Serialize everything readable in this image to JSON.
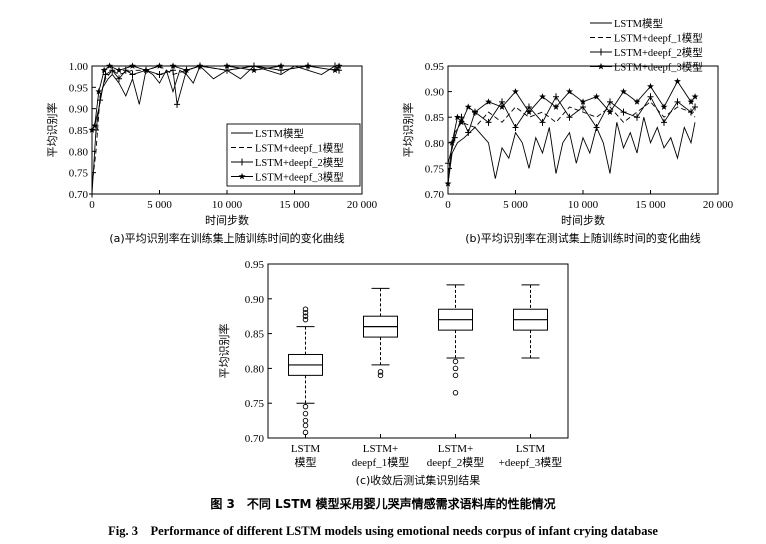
{
  "chart_data": [
    {
      "type": "line",
      "caption": "(a)平均识别率在训练集上随训练时间的变化曲线",
      "xlabel": "时间步数",
      "ylabel": "平均识别率",
      "xlim": [
        0,
        20000
      ],
      "ylim": [
        0.7,
        1.0
      ],
      "xticks": [
        "0",
        "5 000",
        "10 000",
        "15 000",
        "20 000"
      ],
      "yticks": [
        "0.70",
        "0.75",
        "0.80",
        "0.85",
        "0.90",
        "0.95",
        "1.00"
      ],
      "legend_position": "lower-right",
      "series": [
        {
          "name": "LSTM模型",
          "x": [
            0,
            200,
            500,
            800,
            1200,
            1500,
            2000,
            2500,
            3000,
            3500,
            4000,
            4500,
            5000,
            5500,
            6000,
            6500,
            7000,
            7500,
            8000,
            9000,
            10000,
            11000,
            12000,
            13000,
            14000,
            15000,
            16000,
            17000,
            18000,
            18300
          ],
          "y": [
            0.85,
            0.86,
            0.9,
            0.95,
            0.97,
            0.98,
            0.96,
            0.93,
            0.97,
            0.91,
            0.99,
            0.98,
            0.96,
            0.99,
            0.94,
            0.99,
            0.98,
            0.96,
            1.0,
            0.97,
            0.99,
            0.97,
            1.0,
            0.99,
            0.98,
            1.0,
            0.99,
            0.98,
            1.0,
            0.99
          ]
        },
        {
          "name": "LSTM+deepf_1模型",
          "x": [
            0,
            300,
            600,
            1000,
            1500,
            2000,
            3000,
            4000,
            5000,
            6000,
            7000,
            8000,
            10000,
            12000,
            14000,
            16000,
            18000,
            18300
          ],
          "y": [
            0.72,
            0.8,
            0.93,
            0.97,
            0.99,
            0.98,
            0.99,
            0.99,
            1.0,
            0.98,
            0.99,
            1.0,
            0.99,
            1.0,
            0.99,
            1.0,
            1.0,
            0.99
          ]
        },
        {
          "name": "LSTM+deepf_2模型",
          "x": [
            0,
            300,
            600,
            1000,
            1500,
            2000,
            2500,
            3000,
            4000,
            5000,
            6000,
            6300,
            7000,
            8000,
            10000,
            12000,
            14000,
            16000,
            18000,
            18300
          ],
          "y": [
            0.7,
            0.85,
            0.92,
            0.98,
            0.99,
            0.97,
            0.99,
            0.98,
            0.99,
            0.98,
            0.99,
            0.91,
            0.99,
            1.0,
            0.99,
            1.0,
            0.99,
            1.0,
            1.0,
            0.99
          ]
        },
        {
          "name": "LSTM+deepf_3模型",
          "x": [
            0,
            200,
            500,
            900,
            1300,
            2000,
            3000,
            4000,
            5000,
            6000,
            7000,
            8000,
            10000,
            12000,
            14000,
            16000,
            18000,
            18300
          ],
          "y": [
            0.85,
            0.86,
            0.94,
            0.99,
            1.0,
            0.99,
            1.0,
            0.99,
            1.0,
            1.0,
            0.99,
            1.0,
            1.0,
            0.99,
            1.0,
            1.0,
            0.99,
            1.0
          ]
        }
      ]
    },
    {
      "type": "line",
      "caption": "(b)平均识别率在测试集上随训练时间的变化曲线",
      "xlabel": "时间步数",
      "ylabel": "平均识别率",
      "xlim": [
        0,
        20000
      ],
      "ylim": [
        0.7,
        0.95
      ],
      "xticks": [
        "0",
        "5 000",
        "10 000",
        "15 000",
        "20 000"
      ],
      "yticks": [
        "0.70",
        "0.75",
        "0.80",
        "0.85",
        "0.90",
        "0.95"
      ],
      "legend_position": "top-right",
      "series": [
        {
          "name": "LSTM模型",
          "x": [
            0,
            300,
            700,
            1200,
            2000,
            3000,
            3500,
            4000,
            4500,
            5000,
            5500,
            6000,
            6500,
            7000,
            7500,
            8000,
            8500,
            9000,
            9500,
            10000,
            10500,
            11000,
            11500,
            12000,
            12500,
            13000,
            13500,
            14000,
            14500,
            15000,
            15500,
            16000,
            16500,
            17000,
            17500,
            18000,
            18300
          ],
          "y": [
            0.72,
            0.78,
            0.8,
            0.81,
            0.83,
            0.8,
            0.73,
            0.79,
            0.77,
            0.82,
            0.8,
            0.75,
            0.81,
            0.78,
            0.83,
            0.74,
            0.8,
            0.82,
            0.76,
            0.81,
            0.78,
            0.83,
            0.8,
            0.74,
            0.84,
            0.79,
            0.82,
            0.78,
            0.85,
            0.8,
            0.83,
            0.79,
            0.81,
            0.77,
            0.83,
            0.8,
            0.84
          ]
        },
        {
          "name": "LSTM+deepf_1模型",
          "x": [
            0,
            500,
            1000,
            2000,
            3000,
            4000,
            5000,
            6000,
            7000,
            8000,
            9000,
            10000,
            11000,
            12000,
            13000,
            14000,
            15000,
            16000,
            17000,
            18000,
            18300
          ],
          "y": [
            0.74,
            0.82,
            0.84,
            0.83,
            0.86,
            0.84,
            0.87,
            0.85,
            0.86,
            0.84,
            0.87,
            0.86,
            0.85,
            0.87,
            0.84,
            0.86,
            0.88,
            0.85,
            0.87,
            0.86,
            0.85
          ]
        },
        {
          "name": "LSTM+deepf_2模型",
          "x": [
            0,
            500,
            1000,
            1500,
            2000,
            3000,
            4000,
            5000,
            6000,
            7000,
            8000,
            9000,
            10000,
            11000,
            12000,
            13000,
            14000,
            15000,
            16000,
            17000,
            18000,
            18300
          ],
          "y": [
            0.76,
            0.81,
            0.85,
            0.82,
            0.86,
            0.84,
            0.88,
            0.83,
            0.87,
            0.84,
            0.89,
            0.85,
            0.87,
            0.83,
            0.88,
            0.86,
            0.85,
            0.89,
            0.84,
            0.88,
            0.86,
            0.87
          ]
        },
        {
          "name": "LSTM+deepf_3模型",
          "x": [
            0,
            300,
            700,
            1000,
            1500,
            2000,
            3000,
            4000,
            5000,
            6000,
            7000,
            8000,
            9000,
            10000,
            11000,
            12000,
            13000,
            14000,
            15000,
            16000,
            17000,
            18000,
            18300
          ],
          "y": [
            0.72,
            0.8,
            0.85,
            0.84,
            0.87,
            0.86,
            0.88,
            0.87,
            0.9,
            0.86,
            0.89,
            0.87,
            0.9,
            0.88,
            0.89,
            0.86,
            0.9,
            0.88,
            0.91,
            0.87,
            0.92,
            0.88,
            0.89
          ]
        }
      ]
    },
    {
      "type": "box",
      "caption": "(c)收敛后测试集识别结果",
      "ylabel": "平均识别率",
      "ylim": [
        0.7,
        0.95
      ],
      "yticks": [
        "0.70",
        "0.75",
        "0.80",
        "0.85",
        "0.90",
        "0.95"
      ],
      "categories": [
        [
          "LSTM",
          "模型"
        ],
        [
          "LSTM+",
          "deepf_1模型"
        ],
        [
          "LSTM+",
          "deepf_2模型"
        ],
        [
          "LSTM",
          "+deepf_3模型"
        ]
      ],
      "boxes": [
        {
          "whisker_low": 0.75,
          "q1": 0.79,
          "median": 0.805,
          "q3": 0.82,
          "whisker_high": 0.86,
          "outliers": [
            0.87,
            0.875,
            0.88,
            0.885,
            0.745,
            0.735,
            0.725,
            0.718,
            0.708
          ]
        },
        {
          "whisker_low": 0.805,
          "q1": 0.845,
          "median": 0.86,
          "q3": 0.875,
          "whisker_high": 0.915,
          "outliers": [
            0.795,
            0.79
          ]
        },
        {
          "whisker_low": 0.815,
          "q1": 0.855,
          "median": 0.87,
          "q3": 0.885,
          "whisker_high": 0.92,
          "outliers": [
            0.81,
            0.8,
            0.79,
            0.765
          ]
        },
        {
          "whisker_low": 0.815,
          "q1": 0.855,
          "median": 0.87,
          "q3": 0.885,
          "whisker_high": 0.92,
          "outliers": []
        }
      ]
    }
  ],
  "figure_caption_zh": "图 3　不同 LSTM 模型采用婴儿哭声情感需求语料库的性能情况",
  "figure_caption_en": "Fig. 3　Performance of different LSTM models using emotional needs corpus of infant crying database"
}
